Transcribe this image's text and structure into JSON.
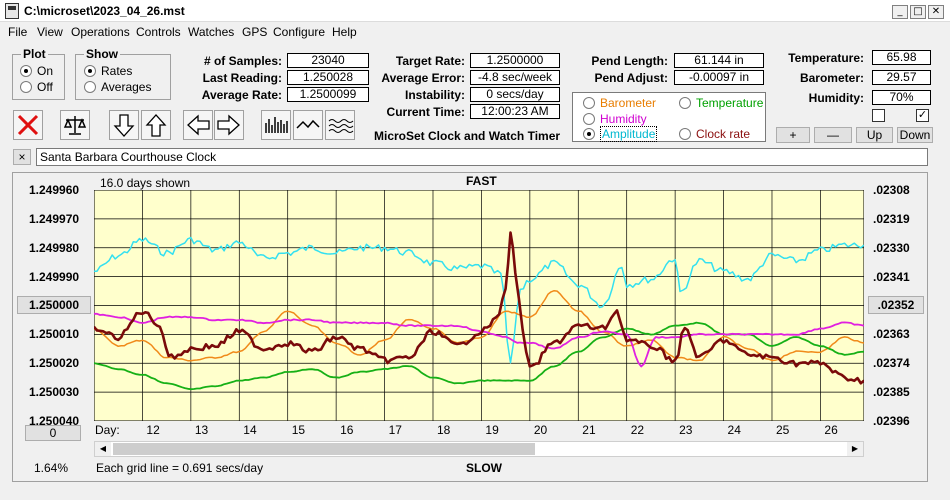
{
  "window": {
    "title": "C:\\microset\\2023_04_26.mst"
  },
  "menu": [
    "File",
    "View",
    "Operations",
    "Controls",
    "Watches",
    "GPS",
    "Configure",
    "Help"
  ],
  "plot_group": {
    "title": "Plot",
    "options": [
      "On",
      "Off"
    ],
    "selected": "On"
  },
  "show_group": {
    "title": "Show",
    "options": [
      "Rates",
      "Averages"
    ],
    "selected": "Rates"
  },
  "stats": {
    "samples_label": "# of Samples:",
    "samples": "23040",
    "last_reading_label": "Last Reading:",
    "last_reading": "1.250028",
    "avg_rate_label": "Average Rate:",
    "avg_rate": "1.2500099",
    "target_rate_label": "Target Rate:",
    "target_rate": "1.2500000",
    "avg_error_label": "Average Error:",
    "avg_error": "-4.8 sec/week",
    "instability_label": "Instability:",
    "instability": "0 secs/day",
    "current_time_label": "Current Time:",
    "current_time": "12:00:23 AM",
    "pend_length_label": "Pend Length:",
    "pend_length": "61.144 in",
    "pend_adjust_label": "Pend Adjust:",
    "pend_adjust": "-0.00097 in",
    "temperature_label": "Temperature:",
    "temperature": "65.98",
    "barometer_label": "Barometer:",
    "barometer": "29.57",
    "humidity_label": "Humidity:",
    "humidity": "70%"
  },
  "app_caption": "MicroSet Clock and Watch Timer",
  "series_selector": {
    "options": [
      {
        "label": "Barometer",
        "color": "#e87d00",
        "selected": false
      },
      {
        "label": "Temperature",
        "color": "#00a000",
        "selected": false
      },
      {
        "label": "Humidity",
        "color": "#d000d0",
        "selected": false
      },
      {
        "label": "Amplitude",
        "color": "#00c8d8",
        "selected": true
      },
      {
        "label": "Clock rate",
        "color": "#8b1010",
        "selected": false
      }
    ]
  },
  "small_buttons": {
    "plus": "+",
    "minus": "—",
    "up": "Up",
    "down": "Down"
  },
  "checkboxes": {
    "left": "",
    "right": "✓"
  },
  "clock_name": "Santa Barbara Courthouse Clock",
  "close_label": "×",
  "chart": {
    "days_shown": "16.0 days shown",
    "top_label": "FAST",
    "bottom_label": "SLOW",
    "grid_note": "Each grid line = 0.691 secs/day",
    "percent": "1.64%",
    "day_label": "Day:",
    "center_button_left": "1.250000",
    "center_button_right": ".02352",
    "zero_button": "0"
  },
  "chart_data": {
    "type": "line",
    "title": "",
    "left_axis_ticks": [
      "1.249960",
      "1.249970",
      "1.249980",
      "1.249990",
      "1.250000",
      "1.250010",
      "1.250020",
      "1.250030",
      "1.250040"
    ],
    "right_axis_ticks": [
      ".02308",
      ".02319",
      ".02330",
      ".02341",
      ".02352",
      ".02363",
      ".02374",
      ".02385",
      ".02396"
    ],
    "x_ticks": [
      12,
      13,
      14,
      15,
      16,
      17,
      18,
      19,
      20,
      21,
      22,
      23,
      24,
      25,
      26
    ],
    "xlim": [
      11.0,
      26.9
    ],
    "ylim": [
      1.24996,
      1.25004
    ],
    "series": [
      {
        "name": "Amplitude",
        "color": "#33e0f0",
        "axis": "right",
        "x": [
          11.0,
          11.5,
          12.0,
          12.5,
          13.0,
          13.5,
          14.0,
          14.5,
          15.0,
          15.5,
          16.0,
          16.5,
          17.0,
          17.5,
          18.0,
          18.5,
          19.0,
          19.4,
          19.6,
          19.8,
          20.0,
          20.5,
          21.0,
          21.5,
          21.9,
          22.0,
          22.5,
          23.0,
          23.1,
          23.5,
          24.0,
          24.5,
          25.0,
          25.5,
          26.0,
          26.5,
          26.9
        ],
        "y": [
          0.02339,
          0.02333,
          0.02327,
          0.02332,
          0.02327,
          0.02331,
          0.02328,
          0.02334,
          0.02332,
          0.0233,
          0.02332,
          0.0233,
          0.0233,
          0.02332,
          0.02336,
          0.02338,
          0.02337,
          0.0234,
          0.02374,
          0.02346,
          0.02342,
          0.02336,
          0.02344,
          0.02352,
          0.02337,
          0.02344,
          0.02342,
          0.02334,
          0.02347,
          0.02335,
          0.02339,
          0.02342,
          0.02333,
          0.02335,
          0.02331,
          0.02329,
          0.02329
        ]
      },
      {
        "name": "Barometer",
        "color": "#f08a1a",
        "axis": "left",
        "x": [
          11.0,
          11.5,
          12.0,
          12.5,
          13.0,
          13.5,
          14.0,
          14.5,
          15.0,
          15.5,
          16.0,
          16.5,
          17.0,
          17.5,
          18.0,
          18.5,
          19.0,
          19.5,
          20.0,
          20.5,
          21.0,
          21.5,
          22.0,
          22.5,
          23.0,
          23.5,
          24.0,
          24.5,
          25.0,
          25.5,
          26.0,
          26.5,
          26.9
        ],
        "y": [
          1.250008,
          1.250014,
          1.250012,
          1.250018,
          1.250019,
          1.250018,
          1.250016,
          1.250009,
          1.250002,
          1.250007,
          1.250013,
          1.250017,
          1.250012,
          1.250005,
          1.250008,
          1.250013,
          1.250011,
          1.250002,
          1.250004,
          1.249995,
          1.250002,
          1.250009,
          1.250014,
          1.250012,
          1.250018,
          1.250019,
          1.250011,
          1.250015,
          1.250019,
          1.250016,
          1.250016,
          1.250011,
          1.250013
        ]
      },
      {
        "name": "Temperature",
        "color": "#16b016",
        "axis": "left",
        "x": [
          11.0,
          11.5,
          12.0,
          12.5,
          13.0,
          13.5,
          14.0,
          14.5,
          15.0,
          15.5,
          16.0,
          16.5,
          17.0,
          17.5,
          18.0,
          18.5,
          19.0,
          19.5,
          20.0,
          20.5,
          21.0,
          21.5,
          22.0,
          22.5,
          23.0,
          23.5,
          24.0,
          24.5,
          25.0,
          25.5,
          26.0,
          26.5,
          26.9
        ],
        "y": [
          1.25002,
          1.250022,
          1.250024,
          1.250027,
          1.250029,
          1.250028,
          1.250026,
          1.250025,
          1.250023,
          1.250022,
          1.250025,
          1.250023,
          1.250022,
          1.250021,
          1.250025,
          1.250027,
          1.250026,
          1.250026,
          1.250026,
          1.250021,
          1.250016,
          1.250011,
          1.250008,
          1.25001,
          1.250007,
          1.250006,
          1.25001,
          1.25001,
          1.250014,
          1.250011,
          1.250014,
          1.250017,
          1.250016
        ]
      },
      {
        "name": "Humidity",
        "color": "#e020e0",
        "axis": "left",
        "x": [
          11.0,
          11.5,
          12.0,
          12.5,
          13.0,
          13.5,
          14.0,
          14.5,
          15.0,
          15.5,
          16.0,
          16.5,
          17.0,
          17.5,
          18.0,
          18.5,
          19.0,
          19.5,
          19.8,
          20.0,
          20.5,
          21.0,
          21.5,
          22.0,
          22.3,
          22.6,
          23.0,
          23.5,
          24.0,
          24.5,
          25.0,
          25.5,
          26.0,
          26.5,
          26.9
        ],
        "y": [
          1.250003,
          1.250004,
          1.250006,
          1.250004,
          1.250004,
          1.250005,
          1.250005,
          1.250006,
          1.250005,
          1.250005,
          1.250006,
          1.250006,
          1.250006,
          1.250007,
          1.250007,
          1.250007,
          1.250009,
          1.250011,
          1.250013,
          1.250013,
          1.250015,
          1.250011,
          1.250009,
          1.25001,
          1.250021,
          1.250011,
          1.250011,
          1.25001,
          1.25001,
          1.25001,
          1.25001,
          1.25001,
          1.250008,
          1.250006,
          1.250007
        ]
      },
      {
        "name": "Clock rate",
        "color": "#7a0a0a",
        "axis": "left",
        "x": [
          11.0,
          11.5,
          12.0,
          12.3,
          12.6,
          13.0,
          13.5,
          14.0,
          14.5,
          15.0,
          15.5,
          16.0,
          16.5,
          17.0,
          17.5,
          18.0,
          18.5,
          19.0,
          19.3,
          19.5,
          19.6,
          19.7,
          19.85,
          20.0,
          20.5,
          21.0,
          21.5,
          21.8,
          22.0,
          22.5,
          23.0,
          23.2,
          23.5,
          24.0,
          24.5,
          25.0,
          25.5,
          26.0,
          26.5,
          26.9
        ],
        "y": [
          1.250008,
          1.250011,
          1.250002,
          1.250006,
          1.250018,
          1.250015,
          1.250014,
          1.250009,
          1.250015,
          1.250013,
          1.250016,
          1.250011,
          1.250015,
          1.250019,
          1.250018,
          1.250009,
          1.250014,
          1.250009,
          1.250005,
          1.249995,
          1.249974,
          1.249988,
          1.250009,
          1.250022,
          1.250013,
          1.250007,
          1.250008,
          1.250002,
          1.250012,
          1.250014,
          1.250019,
          1.250008,
          1.250018,
          1.250012,
          1.250017,
          1.250018,
          1.25002,
          1.25002,
          1.250025,
          1.250026
        ]
      }
    ]
  }
}
